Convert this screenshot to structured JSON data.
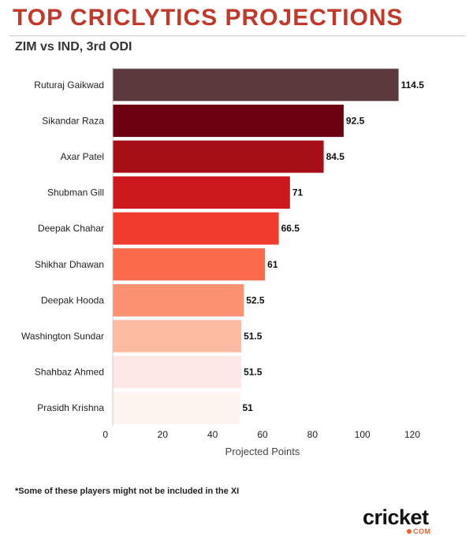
{
  "header": {
    "title": "TOP CRICLYTICS PROJECTIONS",
    "subtitle": "ZIM vs IND, 3rd ODI"
  },
  "footnote": "*Some of these players might not be included in the XI",
  "logo": {
    "word": "cricket",
    "suffix": "COM",
    "accent": "#f0612a"
  },
  "chart_data": {
    "type": "bar",
    "orientation": "horizontal",
    "categories": [
      "Ruturaj Gaikwad",
      "Sikandar Raza",
      "Axar Patel",
      "Shubman Gill",
      "Deepak Chahar",
      "Shikhar Dhawan",
      "Deepak Hooda",
      "Washington Sundar",
      "Shahbaz Ahmed",
      "Prasidh Krishna"
    ],
    "values": [
      114.5,
      92.5,
      84.5,
      71,
      66.5,
      61,
      52.5,
      51.5,
      51.5,
      51
    ],
    "value_labels": [
      "114.5",
      "92.5",
      "84.5",
      "71",
      "66.5",
      "61",
      "52.5",
      "51.5",
      "51.5",
      "51"
    ],
    "colors": [
      "#5c3a3c",
      "#6b0010",
      "#a50f15",
      "#cb181d",
      "#ef3b2c",
      "#fb6a4a",
      "#fc9272",
      "#fcbba1",
      "#fde8e6",
      "#fff5f0"
    ],
    "xlabel": "Projected Points",
    "xlim": [
      0,
      120
    ],
    "xticks": [
      0,
      20,
      40,
      60,
      80,
      100,
      120
    ],
    "xtick_labels": [
      "0",
      "20",
      "40",
      "60",
      "80",
      "100",
      "120"
    ],
    "grid": false,
    "title": "TOP CRICLYTICS PROJECTIONS",
    "subtitle": "ZIM vs IND, 3rd ODI"
  }
}
